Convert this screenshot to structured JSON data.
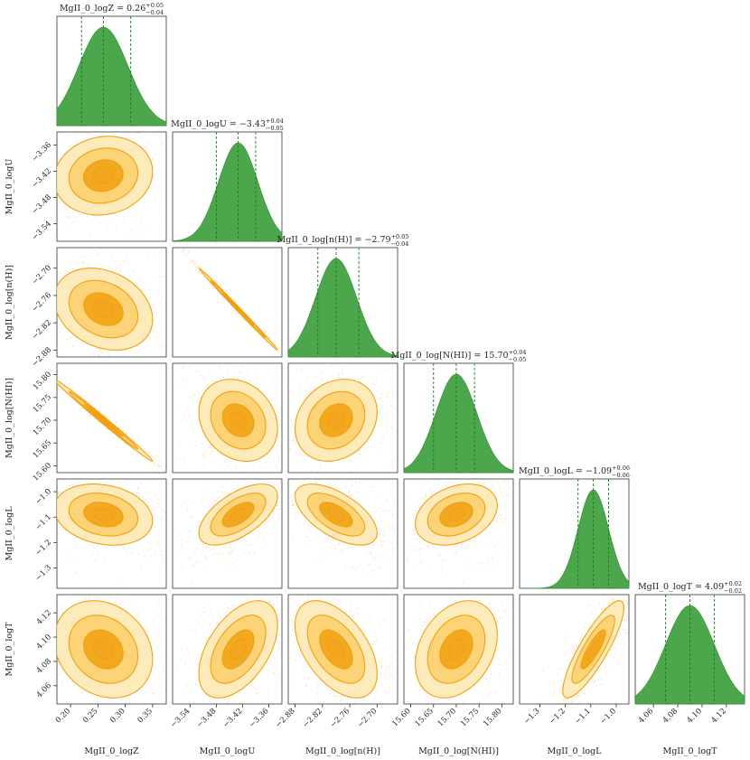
{
  "chart_data": {
    "type": "corner",
    "parameters": [
      {
        "name": "MgII_0_logZ",
        "median": 0.26,
        "plus": 0.05,
        "minus": 0.04,
        "title_main": "MgII_0_logZ = 0.26",
        "title_sup": "+0.05",
        "title_sub": "−0.04",
        "range": [
          0.175,
          0.375
        ],
        "ticks": [
          0.2,
          0.25,
          0.3,
          0.35
        ],
        "tick_labels": [
          "0.20",
          "0.25",
          "0.30",
          "0.35"
        ]
      },
      {
        "name": "MgII_0_logU",
        "median": -3.43,
        "plus": 0.04,
        "minus": 0.05,
        "title_main": "MgII_0_logU = −3.43",
        "title_sup": "+0.04",
        "title_sub": "−0.05",
        "range": [
          -3.58,
          -3.33
        ],
        "ticks": [
          -3.54,
          -3.48,
          -3.42,
          -3.36
        ],
        "tick_labels": [
          "−3.54",
          "−3.48",
          "−3.42",
          "−3.36"
        ]
      },
      {
        "name": "MgII_0_log[n(H)]",
        "median": -2.79,
        "plus": 0.05,
        "minus": 0.04,
        "title_main": "MgII_0_log[n(H)] = −2.79",
        "title_sup": "+0.05",
        "title_sub": "−0.04",
        "range": [
          -2.895,
          -2.655
        ],
        "ticks": [
          -2.88,
          -2.82,
          -2.76,
          -2.7
        ],
        "tick_labels": [
          "−2.88",
          "−2.82",
          "−2.76",
          "−2.70"
        ]
      },
      {
        "name": "MgII_0_log[N(HI)]",
        "median": 15.7,
        "plus": 0.04,
        "minus": 0.05,
        "title_main": "MgII_0_log[N(HI)] = 15.70",
        "title_sup": "+0.04",
        "title_sub": "−0.05",
        "range": [
          15.585,
          15.825
        ],
        "ticks": [
          15.6,
          15.65,
          15.7,
          15.75,
          15.8
        ],
        "tick_labels": [
          "15.60",
          "15.65",
          "15.70",
          "15.75",
          "15.80"
        ]
      },
      {
        "name": "MgII_0_logL",
        "median": -1.09,
        "plus": 0.06,
        "minus": 0.06,
        "title_main": "MgII_0_logL = −1.09",
        "title_sup": "+0.06",
        "title_sub": "−0.06",
        "range": [
          -1.38,
          -0.95
        ],
        "ticks": [
          -1.3,
          -1.2,
          -1.1,
          -1.0
        ],
        "tick_labels": [
          "−1.3",
          "−1.2",
          "−1.1",
          "−1.0"
        ]
      },
      {
        "name": "MgII_0_logT",
        "median": 4.09,
        "plus": 0.02,
        "minus": 0.02,
        "title_main": "MgII_0_logT = 4.09",
        "title_sup": "+0.02",
        "title_sub": "−0.02",
        "range": [
          4.045,
          4.135
        ],
        "ticks": [
          4.06,
          4.08,
          4.1,
          4.12
        ],
        "tick_labels": [
          "4.06",
          "4.08",
          "4.10",
          "4.12"
        ]
      }
    ],
    "correlations": [
      [
        1,
        0,
        0,
        0,
        0,
        0
      ],
      [
        0.1,
        1,
        0,
        0,
        0,
        0
      ],
      [
        -0.25,
        -0.998,
        1,
        0,
        0,
        0
      ],
      [
        -0.995,
        -0.2,
        0.2,
        1,
        0,
        0
      ],
      [
        -0.2,
        0.6,
        -0.6,
        0.3,
        1,
        0
      ],
      [
        -0.2,
        0.5,
        -0.5,
        0.3,
        0.85,
        1
      ]
    ],
    "colors": {
      "hist": "#4ca64c",
      "hist_edge": "#2e8b2e",
      "quantile_line": "#1f7a1f",
      "scatter": "#f5a623",
      "contour_line": "#f0a010",
      "contour_fill_outer": "#fde8b0",
      "contour_fill_mid": "#fbcf6a",
      "contour_fill_inner": "#f5a623",
      "axis": "#333333"
    }
  }
}
